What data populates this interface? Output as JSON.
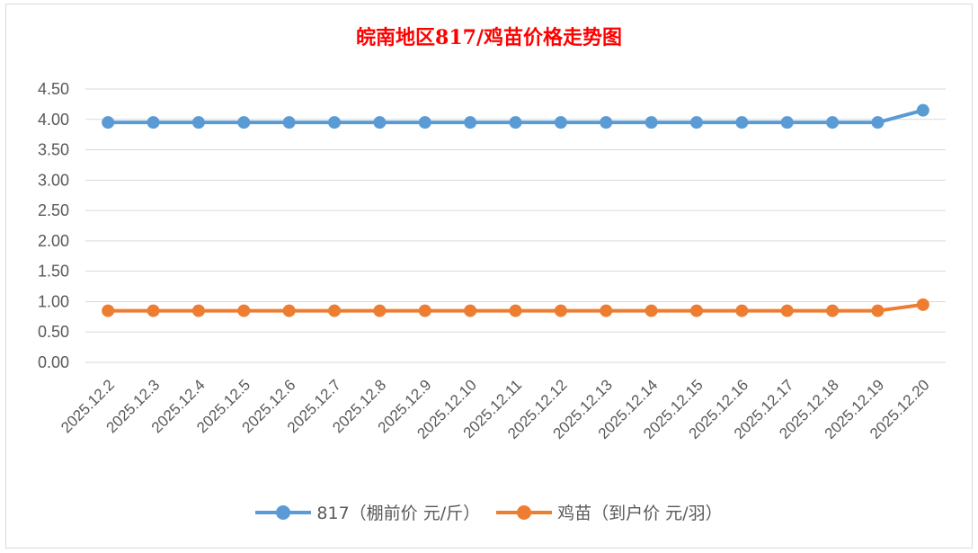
{
  "chart_data": {
    "type": "line",
    "title": "皖南地区817/鸡苗价格走势图",
    "categories": [
      "2025.12.2",
      "2025.12.3",
      "2025.12.4",
      "2025.12.5",
      "2025.12.6",
      "2025.12.7",
      "2025.12.8",
      "2025.12.9",
      "2025.12.10",
      "2025.12.11",
      "2025.12.12",
      "2025.12.13",
      "2025.12.14",
      "2025.12.15",
      "2025.12.16",
      "2025.12.17",
      "2025.12.18",
      "2025.12.19",
      "2025.12.20"
    ],
    "y_ticks": [
      "0.00",
      "0.50",
      "1.00",
      "1.50",
      "2.00",
      "2.50",
      "3.00",
      "3.50",
      "4.00",
      "4.50"
    ],
    "ylim": [
      0,
      4.5
    ],
    "grid": true,
    "legend_position": "bottom",
    "series": [
      {
        "name": "817（棚前价 元/斤）",
        "color": "#5b9bd5",
        "values": [
          3.95,
          3.95,
          3.95,
          3.95,
          3.95,
          3.95,
          3.95,
          3.95,
          3.95,
          3.95,
          3.95,
          3.95,
          3.95,
          3.95,
          3.95,
          3.95,
          3.95,
          3.95,
          4.15
        ]
      },
      {
        "name": "鸡苗（到户价 元/羽）",
        "color": "#ed7d31",
        "values": [
          0.85,
          0.85,
          0.85,
          0.85,
          0.85,
          0.85,
          0.85,
          0.85,
          0.85,
          0.85,
          0.85,
          0.85,
          0.85,
          0.85,
          0.85,
          0.85,
          0.85,
          0.85,
          0.95
        ]
      }
    ]
  }
}
